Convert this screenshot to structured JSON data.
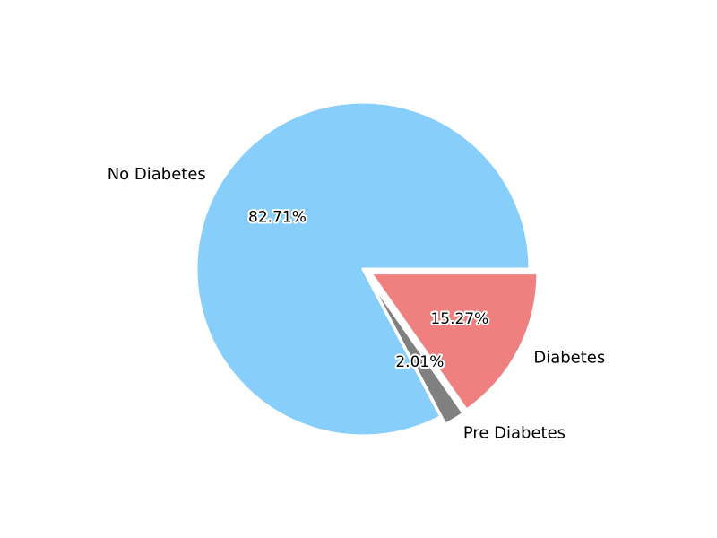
{
  "chart_data": {
    "type": "pie",
    "title": "",
    "categories": [
      "Diabetes",
      "Pre Diabetes",
      "No Diabetes"
    ],
    "values": [
      15.27,
      2.01,
      82.71
    ],
    "value_labels": [
      "15.27%",
      "2.01%",
      "82.71%"
    ],
    "colors": [
      "#f08080",
      "#808080",
      "#87cefa"
    ],
    "exploded": [
      true,
      true,
      false
    ],
    "start_angle_deg": 0,
    "direction": "clockwise",
    "legend": "none"
  }
}
